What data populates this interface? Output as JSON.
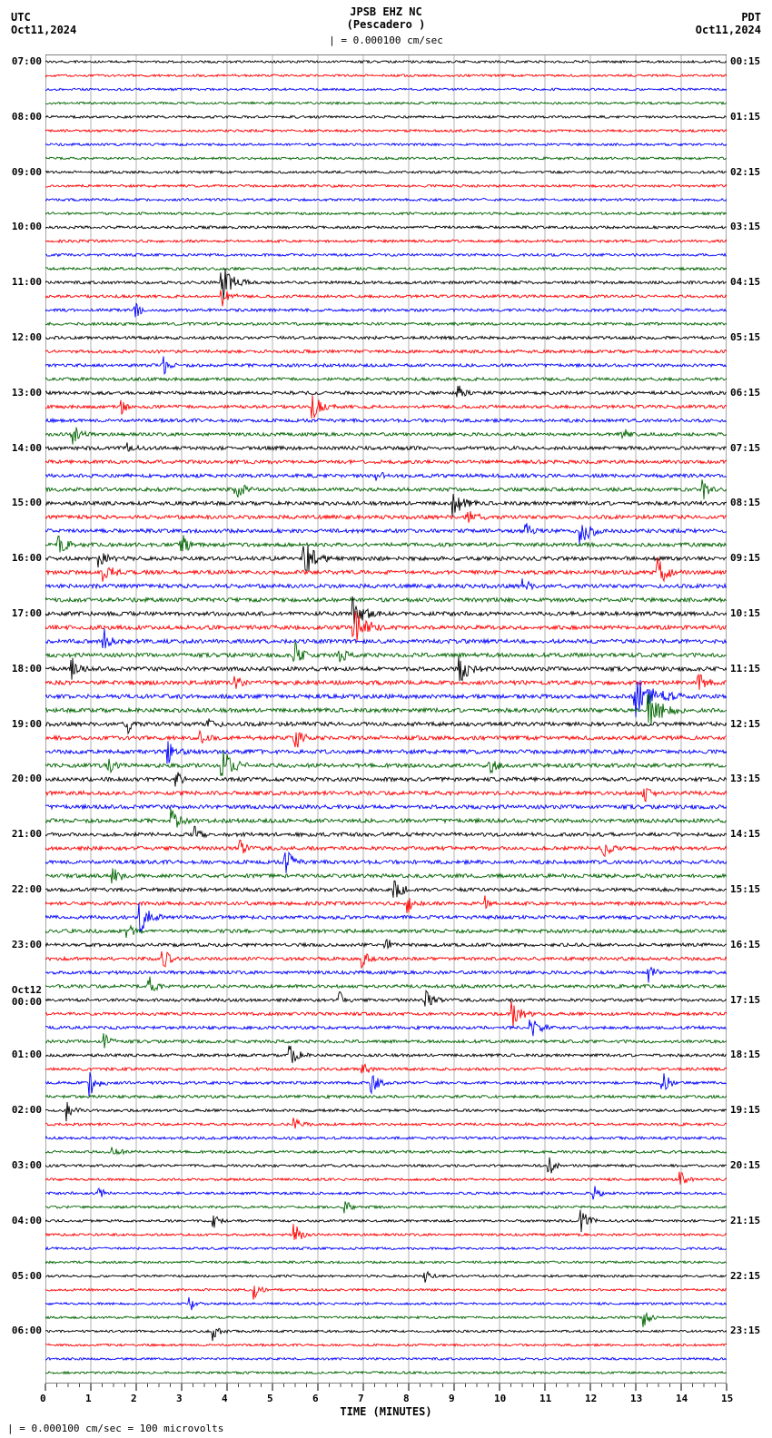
{
  "header": {
    "station_line1": "JPSB EHZ NC",
    "station_line2": "(Pescadero )",
    "left_tz": "UTC",
    "left_date": "Oct11,2024",
    "right_tz": "PDT",
    "right_date": "Oct11,2024",
    "scale_top": "| = 0.000100 cm/sec"
  },
  "xaxis": {
    "label": "TIME (MINUTES)",
    "min": 0,
    "max": 15,
    "major_ticks": [
      0,
      1,
      2,
      3,
      4,
      5,
      6,
      7,
      8,
      9,
      10,
      11,
      12,
      13,
      14,
      15
    ],
    "tick_fontsize": 12
  },
  "footer": {
    "text": "| = 0.000100 cm/sec =    100 microvolts"
  },
  "plot": {
    "background_color": "#ffffff",
    "grid_color": "#808080",
    "trace_colors": [
      "#000000",
      "#ff0000",
      "#0000ff",
      "#006400"
    ],
    "line_spacing": 15.2,
    "n_traces": 96,
    "hour_start_utc": 7,
    "left_hours_utc": [
      "07:00",
      "08:00",
      "09:00",
      "10:00",
      "11:00",
      "12:00",
      "13:00",
      "14:00",
      "15:00",
      "16:00",
      "17:00",
      "18:00",
      "19:00",
      "20:00",
      "21:00",
      "22:00",
      "23:00",
      "Oct12\n00:00",
      "01:00",
      "02:00",
      "03:00",
      "04:00",
      "05:00",
      "06:00"
    ],
    "right_hours_pdt": [
      "00:15",
      "01:15",
      "02:15",
      "03:15",
      "04:15",
      "05:15",
      "06:15",
      "07:15",
      "08:15",
      "09:15",
      "10:15",
      "11:15",
      "12:15",
      "13:15",
      "14:15",
      "15:15",
      "16:15",
      "17:15",
      "18:15",
      "19:15",
      "20:15",
      "21:15",
      "22:15",
      "23:15"
    ],
    "noise_amp_base": 1.2,
    "events": [
      {
        "trace": 16,
        "x": 3.9,
        "amp": 22,
        "dur": 0.6
      },
      {
        "trace": 17,
        "x": 3.9,
        "amp": 10,
        "dur": 0.4
      },
      {
        "trace": 18,
        "x": 2.0,
        "amp": 8,
        "dur": 0.3
      },
      {
        "trace": 22,
        "x": 2.6,
        "amp": 10,
        "dur": 0.3
      },
      {
        "trace": 24,
        "x": 9.1,
        "amp": 8,
        "dur": 0.3
      },
      {
        "trace": 25,
        "x": 1.7,
        "amp": 7,
        "dur": 0.25
      },
      {
        "trace": 25,
        "x": 5.9,
        "amp": 12,
        "dur": 0.5
      },
      {
        "trace": 27,
        "x": 0.6,
        "amp": 14,
        "dur": 0.4
      },
      {
        "trace": 27,
        "x": 12.7,
        "amp": 10,
        "dur": 0.3
      },
      {
        "trace": 28,
        "x": 1.8,
        "amp": 8,
        "dur": 0.3
      },
      {
        "trace": 30,
        "x": 7.3,
        "amp": 7,
        "dur": 0.25
      },
      {
        "trace": 31,
        "x": 4.2,
        "amp": 12,
        "dur": 0.4
      },
      {
        "trace": 31,
        "x": 14.5,
        "amp": 9,
        "dur": 0.3
      },
      {
        "trace": 32,
        "x": 9.0,
        "amp": 14,
        "dur": 0.5
      },
      {
        "trace": 33,
        "x": 9.3,
        "amp": 10,
        "dur": 0.4
      },
      {
        "trace": 34,
        "x": 10.6,
        "amp": 8,
        "dur": 0.3
      },
      {
        "trace": 34,
        "x": 11.8,
        "amp": 14,
        "dur": 0.6
      },
      {
        "trace": 35,
        "x": 0.3,
        "amp": 10,
        "dur": 0.4
      },
      {
        "trace": 35,
        "x": 3.0,
        "amp": 12,
        "dur": 0.4
      },
      {
        "trace": 36,
        "x": 5.7,
        "amp": 20,
        "dur": 0.6
      },
      {
        "trace": 36,
        "x": 1.2,
        "amp": 10,
        "dur": 0.4
      },
      {
        "trace": 37,
        "x": 1.3,
        "amp": 14,
        "dur": 0.4
      },
      {
        "trace": 37,
        "x": 13.5,
        "amp": 16,
        "dur": 0.5
      },
      {
        "trace": 38,
        "x": 10.5,
        "amp": 8,
        "dur": 0.4
      },
      {
        "trace": 40,
        "x": 6.8,
        "amp": 18,
        "dur": 0.6
      },
      {
        "trace": 41,
        "x": 6.8,
        "amp": 22,
        "dur": 0.7
      },
      {
        "trace": 42,
        "x": 1.3,
        "amp": 12,
        "dur": 0.4
      },
      {
        "trace": 43,
        "x": 5.5,
        "amp": 14,
        "dur": 0.4
      },
      {
        "trace": 43,
        "x": 6.5,
        "amp": 8,
        "dur": 0.3
      },
      {
        "trace": 44,
        "x": 9.1,
        "amp": 18,
        "dur": 0.5
      },
      {
        "trace": 44,
        "x": 0.6,
        "amp": 10,
        "dur": 0.35
      },
      {
        "trace": 45,
        "x": 4.2,
        "amp": 8,
        "dur": 0.3
      },
      {
        "trace": 45,
        "x": 14.4,
        "amp": 10,
        "dur": 0.4
      },
      {
        "trace": 46,
        "x": 13.0,
        "amp": 26,
        "dur": 1.0
      },
      {
        "trace": 47,
        "x": 13.3,
        "amp": 18,
        "dur": 0.8
      },
      {
        "trace": 48,
        "x": 1.8,
        "amp": 10,
        "dur": 0.3
      },
      {
        "trace": 48,
        "x": 3.6,
        "amp": 10,
        "dur": 0.3
      },
      {
        "trace": 49,
        "x": 3.4,
        "amp": 8,
        "dur": 0.3
      },
      {
        "trace": 49,
        "x": 5.5,
        "amp": 14,
        "dur": 0.4
      },
      {
        "trace": 50,
        "x": 2.7,
        "amp": 12,
        "dur": 0.4
      },
      {
        "trace": 51,
        "x": 1.4,
        "amp": 8,
        "dur": 0.3
      },
      {
        "trace": 51,
        "x": 3.9,
        "amp": 18,
        "dur": 0.6
      },
      {
        "trace": 51,
        "x": 9.8,
        "amp": 10,
        "dur": 0.3
      },
      {
        "trace": 52,
        "x": 2.9,
        "amp": 8,
        "dur": 0.3
      },
      {
        "trace": 53,
        "x": 13.2,
        "amp": 10,
        "dur": 0.3
      },
      {
        "trace": 55,
        "x": 2.8,
        "amp": 12,
        "dur": 0.4
      },
      {
        "trace": 56,
        "x": 3.3,
        "amp": 8,
        "dur": 0.3
      },
      {
        "trace": 57,
        "x": 4.3,
        "amp": 8,
        "dur": 0.3
      },
      {
        "trace": 57,
        "x": 12.3,
        "amp": 10,
        "dur": 0.35
      },
      {
        "trace": 58,
        "x": 5.3,
        "amp": 14,
        "dur": 0.4
      },
      {
        "trace": 59,
        "x": 1.5,
        "amp": 10,
        "dur": 0.4
      },
      {
        "trace": 60,
        "x": 7.7,
        "amp": 14,
        "dur": 0.4
      },
      {
        "trace": 61,
        "x": 8.0,
        "amp": 10,
        "dur": 0.35
      },
      {
        "trace": 61,
        "x": 9.7,
        "amp": 8,
        "dur": 0.3
      },
      {
        "trace": 62,
        "x": 2.1,
        "amp": 16,
        "dur": 0.5
      },
      {
        "trace": 63,
        "x": 1.8,
        "amp": 10,
        "dur": 0.35
      },
      {
        "trace": 64,
        "x": 7.5,
        "amp": 8,
        "dur": 0.3
      },
      {
        "trace": 65,
        "x": 2.6,
        "amp": 12,
        "dur": 0.35
      },
      {
        "trace": 65,
        "x": 7.0,
        "amp": 10,
        "dur": 0.3
      },
      {
        "trace": 66,
        "x": 13.3,
        "amp": 10,
        "dur": 0.3
      },
      {
        "trace": 67,
        "x": 2.3,
        "amp": 10,
        "dur": 0.35
      },
      {
        "trace": 68,
        "x": 6.5,
        "amp": 8,
        "dur": 0.3
      },
      {
        "trace": 68,
        "x": 8.4,
        "amp": 12,
        "dur": 0.35
      },
      {
        "trace": 69,
        "x": 10.3,
        "amp": 14,
        "dur": 0.5
      },
      {
        "trace": 70,
        "x": 10.7,
        "amp": 12,
        "dur": 0.45
      },
      {
        "trace": 71,
        "x": 1.3,
        "amp": 10,
        "dur": 0.3
      },
      {
        "trace": 72,
        "x": 5.4,
        "amp": 14,
        "dur": 0.4
      },
      {
        "trace": 73,
        "x": 7.0,
        "amp": 8,
        "dur": 0.3
      },
      {
        "trace": 74,
        "x": 1.0,
        "amp": 14,
        "dur": 0.4
      },
      {
        "trace": 74,
        "x": 7.2,
        "amp": 10,
        "dur": 0.4
      },
      {
        "trace": 74,
        "x": 13.6,
        "amp": 12,
        "dur": 0.4
      },
      {
        "trace": 76,
        "x": 0.5,
        "amp": 12,
        "dur": 0.35
      },
      {
        "trace": 77,
        "x": 5.5,
        "amp": 10,
        "dur": 0.35
      },
      {
        "trace": 79,
        "x": 1.5,
        "amp": 8,
        "dur": 0.3
      },
      {
        "trace": 80,
        "x": 11.1,
        "amp": 10,
        "dur": 0.35
      },
      {
        "trace": 81,
        "x": 14.0,
        "amp": 8,
        "dur": 0.3
      },
      {
        "trace": 82,
        "x": 1.2,
        "amp": 8,
        "dur": 0.25
      },
      {
        "trace": 82,
        "x": 12.1,
        "amp": 8,
        "dur": 0.3
      },
      {
        "trace": 83,
        "x": 6.6,
        "amp": 8,
        "dur": 0.3
      },
      {
        "trace": 84,
        "x": 3.7,
        "amp": 10,
        "dur": 0.3
      },
      {
        "trace": 84,
        "x": 11.8,
        "amp": 14,
        "dur": 0.4
      },
      {
        "trace": 85,
        "x": 5.5,
        "amp": 12,
        "dur": 0.35
      },
      {
        "trace": 88,
        "x": 8.3,
        "amp": 12,
        "dur": 0.35
      },
      {
        "trace": 89,
        "x": 4.6,
        "amp": 10,
        "dur": 0.3
      },
      {
        "trace": 90,
        "x": 3.2,
        "amp": 8,
        "dur": 0.25
      },
      {
        "trace": 91,
        "x": 13.2,
        "amp": 10,
        "dur": 0.3
      },
      {
        "trace": 92,
        "x": 3.7,
        "amp": 12,
        "dur": 0.35
      }
    ]
  }
}
